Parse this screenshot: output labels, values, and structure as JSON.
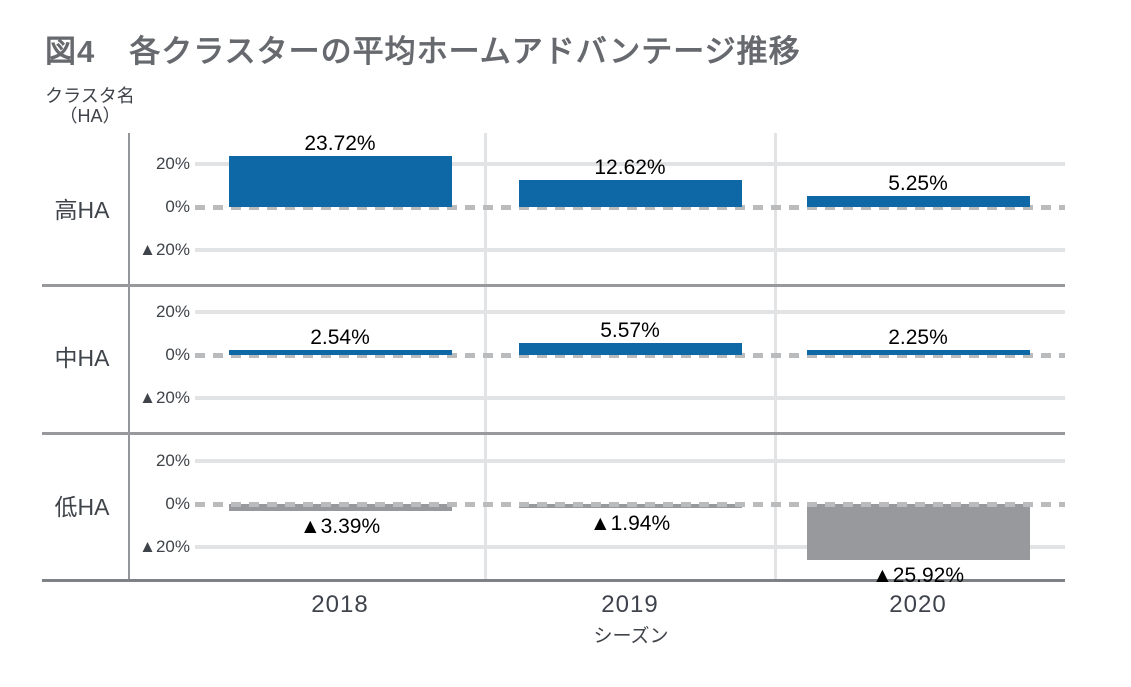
{
  "title": {
    "prefix": "図4",
    "text": "各クラスターの平均ホームアドバンテージ推移"
  },
  "axes": {
    "y_title_line1": "クラスタ名",
    "y_title_line2": "（HA）",
    "x_title": "シーズン",
    "y_tick_labels": [
      "20%",
      "0%",
      "▲20%"
    ]
  },
  "chart_data": {
    "type": "bar",
    "title": "図4　各クラスターの平均ホームアドバンテージ推移",
    "categories": [
      "2018",
      "2019",
      "2020"
    ],
    "xlabel": "シーズン",
    "ylabel": "クラスタ名（HA）",
    "panel_ylim": [
      -30,
      30
    ],
    "panel_y_ticks": [
      20,
      0,
      -20
    ],
    "grid": true,
    "legend": "none",
    "panels": [
      {
        "label": "高HA",
        "values": [
          23.72,
          12.62,
          5.25
        ],
        "value_labels": [
          "23.72%",
          "12.62%",
          "5.25%"
        ]
      },
      {
        "label": "中HA",
        "values": [
          2.54,
          5.57,
          2.25
        ],
        "value_labels": [
          "2.54%",
          "5.57%",
          "2.25%"
        ]
      },
      {
        "label": "低HA",
        "values": [
          -3.39,
          -1.94,
          -25.92
        ],
        "value_labels": [
          "▲3.39%",
          "▲1.94%",
          "▲25.92%"
        ]
      }
    ],
    "colors": {
      "positive_bar": "#0d68a5",
      "negative_bar": "#97999c",
      "gridline": "#e2e3e5",
      "zero_line_dash": "#b9bbbd",
      "divider": "#97999d",
      "text_dark": "#3f444a",
      "title_gray": "#66696e"
    }
  }
}
